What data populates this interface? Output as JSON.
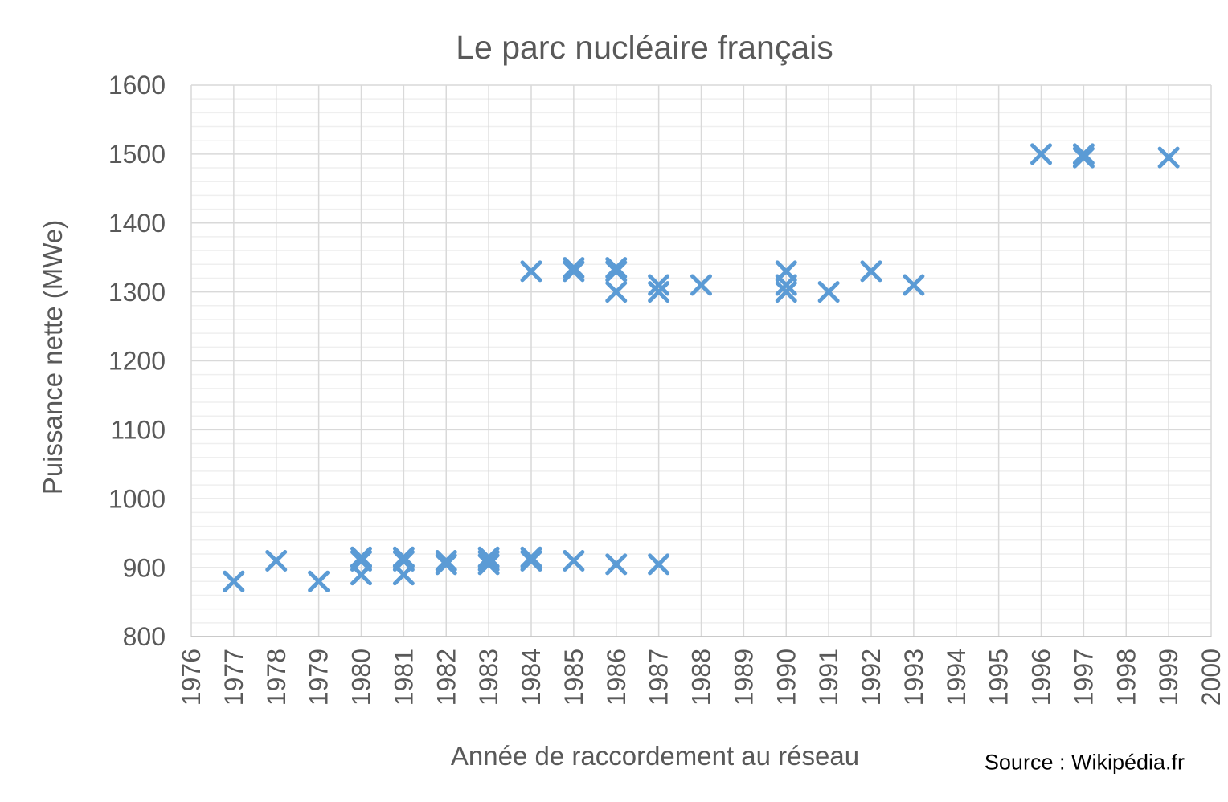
{
  "chart_data": {
    "type": "scatter",
    "title": "Le parc nucléaire français",
    "xlabel": "Année de raccordement au réseau",
    "ylabel": "Puissance nette (MWe)",
    "source": "Source : Wikipédia.fr",
    "xlim": [
      1976,
      2000
    ],
    "ylim": [
      800,
      1600
    ],
    "x_tick_step": 1,
    "y_tick_step": 100,
    "y_minor_step": 20,
    "grid": true,
    "legend_position": "none",
    "marker": "x",
    "colors": {
      "marker": "#5B9BD5",
      "grid_major": "#D9D9D9",
      "grid_minor": "#EFEFEF",
      "axis_line": "#BFBFBF",
      "text": "#595959",
      "source_text": "#000000"
    },
    "points": [
      [
        1977,
        880
      ],
      [
        1978,
        910
      ],
      [
        1979,
        880
      ],
      [
        1980,
        890
      ],
      [
        1980,
        910
      ],
      [
        1980,
        915
      ],
      [
        1981,
        890
      ],
      [
        1981,
        910
      ],
      [
        1981,
        915
      ],
      [
        1982,
        905
      ],
      [
        1982,
        910
      ],
      [
        1983,
        905
      ],
      [
        1983,
        910
      ],
      [
        1983,
        915
      ],
      [
        1984,
        910
      ],
      [
        1984,
        915
      ],
      [
        1984,
        1330
      ],
      [
        1985,
        910
      ],
      [
        1985,
        1330
      ],
      [
        1985,
        1335
      ],
      [
        1986,
        905
      ],
      [
        1986,
        1300
      ],
      [
        1986,
        1330
      ],
      [
        1986,
        1335
      ],
      [
        1987,
        905
      ],
      [
        1987,
        1300
      ],
      [
        1987,
        1310
      ],
      [
        1988,
        1310
      ],
      [
        1990,
        1300
      ],
      [
        1990,
        1310
      ],
      [
        1990,
        1330
      ],
      [
        1991,
        1300
      ],
      [
        1992,
        1330
      ],
      [
        1993,
        1310
      ],
      [
        1996,
        1500
      ],
      [
        1997,
        1495
      ],
      [
        1997,
        1500
      ],
      [
        1999,
        1495
      ]
    ]
  }
}
